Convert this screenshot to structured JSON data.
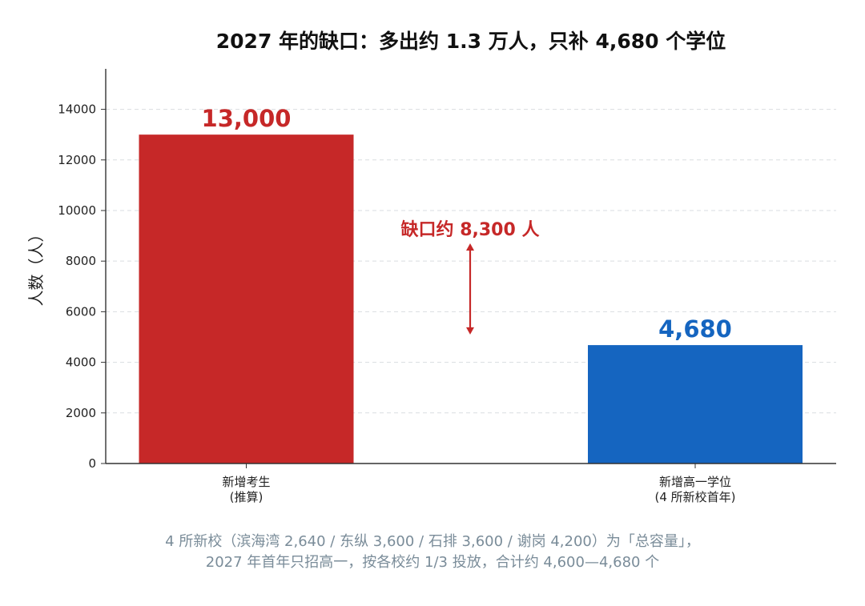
{
  "chart_data": {
    "type": "bar",
    "title": "2027 年的缺口：多出约 1.3 万人，只补 4,680 个学位",
    "xlabel": "",
    "ylabel": "人数（人）",
    "ylim": [
      0,
      15600
    ],
    "yticks": [
      0,
      2000,
      4000,
      6000,
      8000,
      10000,
      12000,
      14000
    ],
    "ytick_labels": [
      "0",
      "2000",
      "4000",
      "6000",
      "8000",
      "10000",
      "12000",
      "14000"
    ],
    "grid": "horizontal-dashed",
    "categories": [
      [
        "新增考生",
        "(推算)"
      ],
      [
        "新增高一学位",
        "(4 所新校首年)"
      ]
    ],
    "values": [
      13000,
      4680
    ],
    "value_labels": [
      "13,000",
      "4,680"
    ],
    "colors": [
      "#c62828",
      "#1565c0"
    ],
    "annotation": {
      "text": "缺口约 8,300 人",
      "color": "#c62828",
      "arrow_from": 5100,
      "arrow_to": 8700
    }
  },
  "footnote": {
    "line1": "4 所新校（滨海湾 2,640 / 东纵 3,600 / 石排 3,600 / 谢岗 4,200）为「总容量」，",
    "line2": "2027 年首年只招高一，按各校约 1/3 投放，合计约 4,600—4,680 个"
  }
}
